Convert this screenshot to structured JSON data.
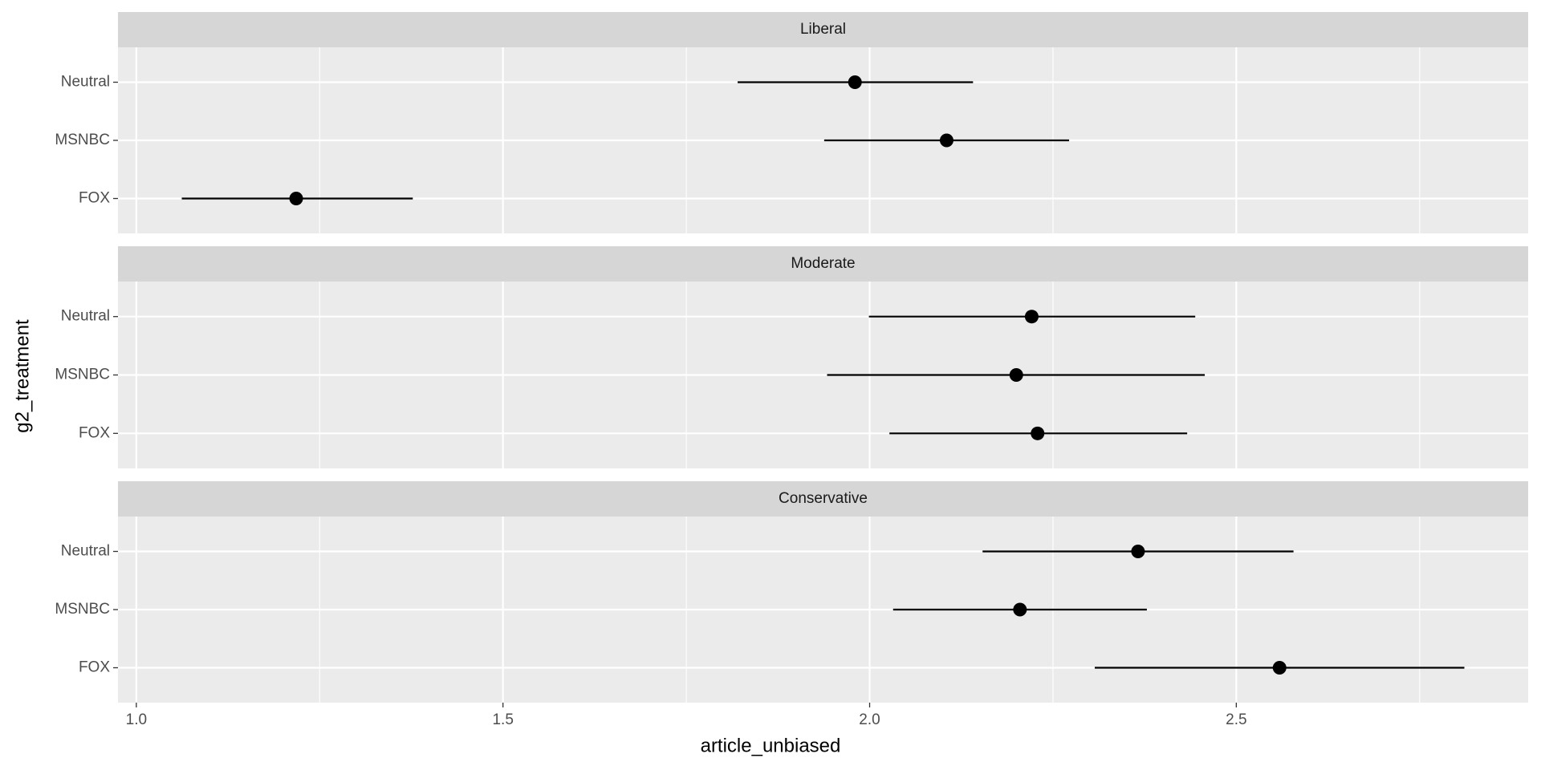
{
  "chart_data": {
    "type": "dot-whisker",
    "x_label": "article_unbiased",
    "y_label": "g2_treatment",
    "categories": [
      "Neutral",
      "MSNBC",
      "FOX"
    ],
    "color": "#000000",
    "xlim": [
      0.975,
      2.898
    ],
    "xticks": [
      {
        "value": 1.0,
        "label": "1.0"
      },
      {
        "value": 1.5,
        "label": "1.5"
      },
      {
        "value": 2.0,
        "label": "2.0"
      },
      {
        "value": 2.5,
        "label": "2.5"
      }
    ],
    "grid": true,
    "panels": [
      {
        "title": "Liberal",
        "values": [
          1.98,
          2.105,
          1.218
        ],
        "lower": [
          1.82,
          1.938,
          1.062
        ],
        "upper": [
          2.141,
          2.272,
          1.377
        ]
      },
      {
        "title": "Moderate",
        "values": [
          2.221,
          2.2,
          2.229
        ],
        "lower": [
          1.999,
          1.942,
          2.027
        ],
        "upper": [
          2.444,
          2.457,
          2.433
        ]
      },
      {
        "title": "Conservative",
        "values": [
          2.366,
          2.205,
          2.559
        ],
        "lower": [
          2.154,
          2.032,
          2.307
        ],
        "upper": [
          2.578,
          2.378,
          2.811
        ]
      }
    ]
  }
}
